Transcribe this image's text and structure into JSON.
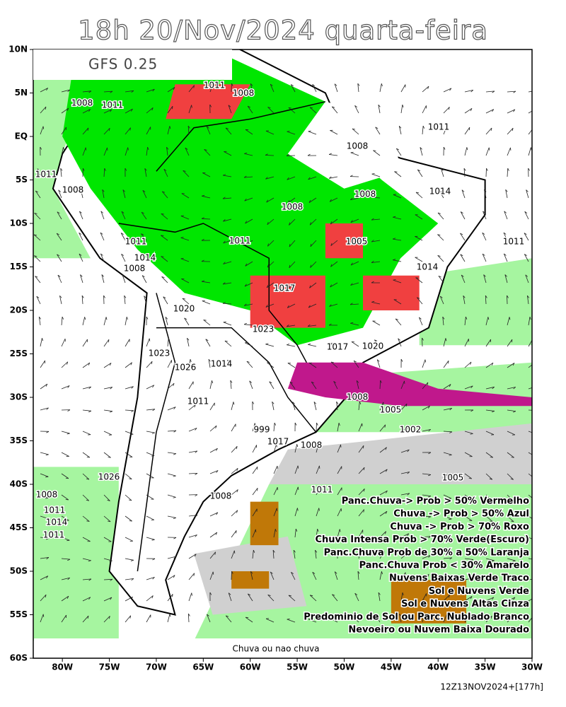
{
  "title": "18h 20/Nov/2024 quarta-feira",
  "model": "GFS 0.25",
  "lat_ticks": [
    {
      "value": 10,
      "label": "10N"
    },
    {
      "value": 5,
      "label": "5N"
    },
    {
      "value": 0,
      "label": "EQ"
    },
    {
      "value": -5,
      "label": "5S"
    },
    {
      "value": -10,
      "label": "10S"
    },
    {
      "value": -15,
      "label": "15S"
    },
    {
      "value": -20,
      "label": "20S"
    },
    {
      "value": -25,
      "label": "25S"
    },
    {
      "value": -30,
      "label": "30S"
    },
    {
      "value": -35,
      "label": "35S"
    },
    {
      "value": -40,
      "label": "40S"
    },
    {
      "value": -45,
      "label": "45S"
    },
    {
      "value": -50,
      "label": "50S"
    },
    {
      "value": -55,
      "label": "55S"
    },
    {
      "value": -60,
      "label": "60S"
    }
  ],
  "lon_ticks": [
    {
      "value": -80,
      "label": "80W"
    },
    {
      "value": -75,
      "label": "75W"
    },
    {
      "value": -70,
      "label": "70W"
    },
    {
      "value": -65,
      "label": "65W"
    },
    {
      "value": -60,
      "label": "60W"
    },
    {
      "value": -55,
      "label": "55W"
    },
    {
      "value": -50,
      "label": "50W"
    },
    {
      "value": -45,
      "label": "45W"
    },
    {
      "value": -40,
      "label": "40W"
    },
    {
      "value": -35,
      "label": "35W"
    },
    {
      "value": -30,
      "label": "30W"
    }
  ],
  "lonlim": [
    -83.1,
    -30
  ],
  "latlim": [
    -60,
    10
  ],
  "isobars": [
    "1011",
    "1008",
    "1011",
    "1008",
    "1011",
    "1008",
    "1008",
    "1011",
    "1014",
    "1008",
    "1008",
    "1011",
    "1011",
    "1005",
    "1011",
    "1014",
    "1008",
    "1014",
    "1017",
    "1020",
    "1023",
    "1017",
    "1020",
    "1023",
    "1026",
    "1014",
    "1011",
    "1008",
    "1005",
    "1002",
    "999",
    "1017",
    "1008",
    "1005",
    "1026",
    "1011",
    "1008",
    "1008",
    "1011",
    "1014",
    "1011"
  ],
  "legend": [
    "Panc.Chuva-> Prob > 50% Vermelho",
    "Chuva -> Prob > 50% Azul",
    "Chuva -> Prob > 70% Roxo",
    "Chuva Intensa Prob > 70% Verde(Escuro)",
    "Panc.Chuva Prob de 30% a 50% Laranja",
    "Panc.Chuva    Prob < 30% Amarelo",
    "Nuvens Baixas Verde Traco",
    "Sol e Nuvens Verde",
    "Sol e Nuvens Altas Cinza",
    "Predominio de Sol ou Parc. Nublado Branco",
    "Nevoeiro ou Nuvem Baixa Dourado"
  ],
  "footer": "Chuva ou nao chuva",
  "run": "12Z13NOV2024+[177h]"
}
